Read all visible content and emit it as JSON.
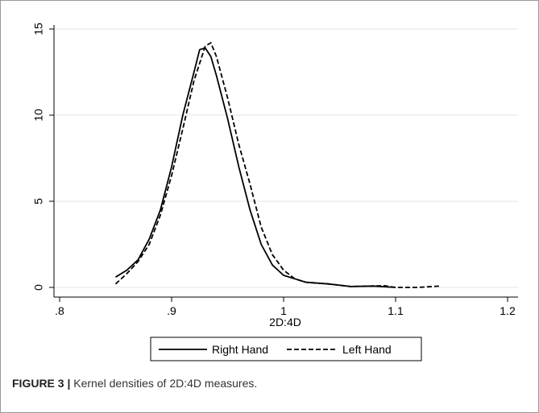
{
  "chart_data": {
    "type": "line",
    "xlabel": "2D:4D",
    "ylabel": "",
    "xlim": [
      0.8,
      1.2
    ],
    "ylim": [
      0,
      15
    ],
    "xticks": [
      ".8",
      ".9",
      "1",
      "1.1",
      "1.2"
    ],
    "xtick_values": [
      0.8,
      0.9,
      1.0,
      1.1,
      1.2
    ],
    "yticks": [
      "0",
      "5",
      "10",
      "15"
    ],
    "ytick_values": [
      0,
      5,
      10,
      15
    ],
    "grid": "horizontal",
    "legend_position": "bottom",
    "series": [
      {
        "name": "Right Hand",
        "style": "solid",
        "color": "#000000",
        "points": [
          [
            0.85,
            0.6
          ],
          [
            0.86,
            1.0
          ],
          [
            0.87,
            1.6
          ],
          [
            0.88,
            2.8
          ],
          [
            0.89,
            4.5
          ],
          [
            0.9,
            7.0
          ],
          [
            0.91,
            10.0
          ],
          [
            0.92,
            12.5
          ],
          [
            0.925,
            13.8
          ],
          [
            0.93,
            13.9
          ],
          [
            0.935,
            13.4
          ],
          [
            0.94,
            12.3
          ],
          [
            0.95,
            9.8
          ],
          [
            0.96,
            7.0
          ],
          [
            0.97,
            4.5
          ],
          [
            0.98,
            2.5
          ],
          [
            0.99,
            1.3
          ],
          [
            1.0,
            0.7
          ],
          [
            1.01,
            0.5
          ],
          [
            1.02,
            0.3
          ],
          [
            1.04,
            0.2
          ],
          [
            1.06,
            0.05
          ],
          [
            1.08,
            0.08
          ],
          [
            1.1,
            0.0
          ]
        ]
      },
      {
        "name": "Left Hand",
        "style": "dashed",
        "color": "#000000",
        "points": [
          [
            0.85,
            0.2
          ],
          [
            0.86,
            0.8
          ],
          [
            0.87,
            1.5
          ],
          [
            0.88,
            2.5
          ],
          [
            0.89,
            4.2
          ],
          [
            0.9,
            6.5
          ],
          [
            0.91,
            9.2
          ],
          [
            0.92,
            12.0
          ],
          [
            0.93,
            14.0
          ],
          [
            0.935,
            14.2
          ],
          [
            0.94,
            13.4
          ],
          [
            0.95,
            11.0
          ],
          [
            0.96,
            8.3
          ],
          [
            0.97,
            6.0
          ],
          [
            0.98,
            3.5
          ],
          [
            0.99,
            1.9
          ],
          [
            1.0,
            1.0
          ],
          [
            1.01,
            0.5
          ],
          [
            1.02,
            0.3
          ],
          [
            1.04,
            0.2
          ],
          [
            1.06,
            0.05
          ],
          [
            1.09,
            0.1
          ],
          [
            1.1,
            0.0
          ],
          [
            1.12,
            0.0
          ],
          [
            1.14,
            0.08
          ]
        ]
      }
    ]
  },
  "caption": {
    "label": "FIGURE 3 |",
    "text": " Kernel densities of 2D:4D measures."
  },
  "colors": {
    "frame_border": "#9a9a9a",
    "grid": "#e5e5e5",
    "line": "#000000"
  }
}
